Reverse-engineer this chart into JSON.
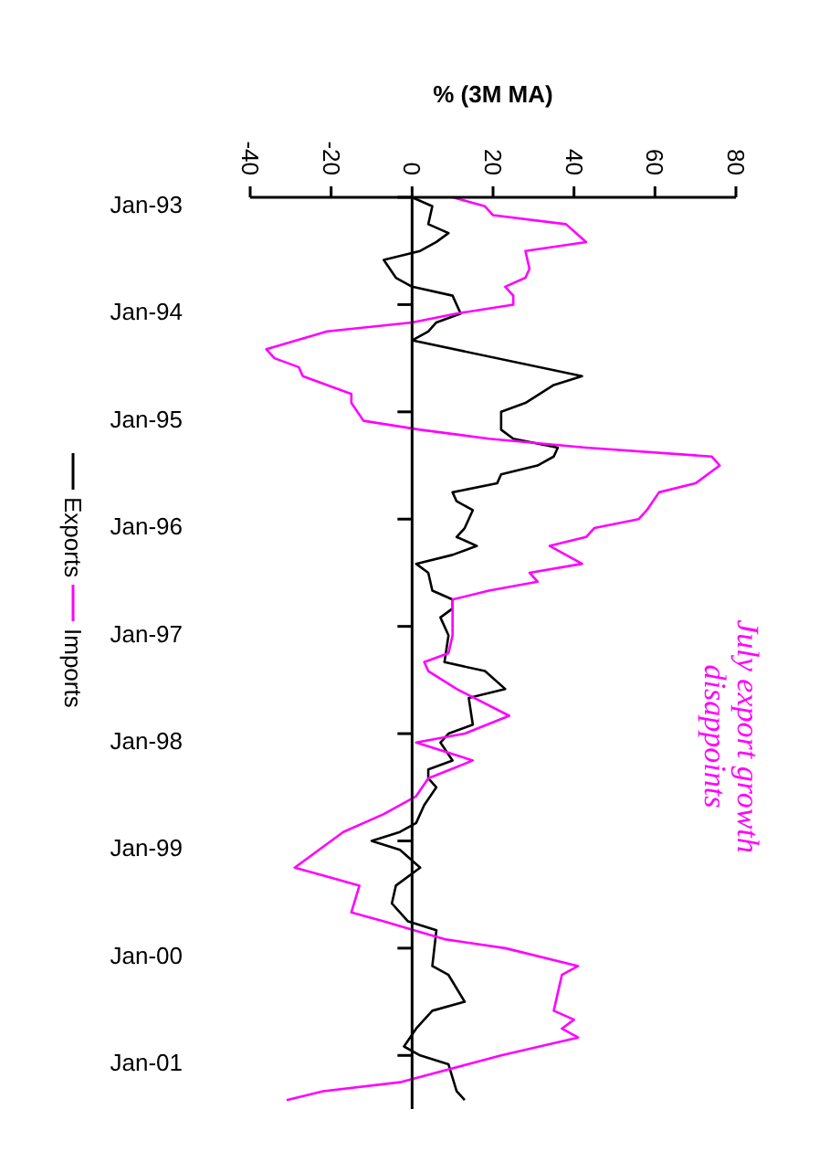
{
  "chart_data": {
    "type": "line",
    "xlabel": "% (3M MA)",
    "orientation": "horizontal",
    "ylim": [
      "2001-07",
      "1993-01"
    ],
    "yticks": [
      {
        "value": "1993-01",
        "label": "Jan-93"
      },
      {
        "value": "1994-01",
        "label": "Jan-94"
      },
      {
        "value": "1995-01",
        "label": "Jan-95"
      },
      {
        "value": "1996-01",
        "label": "Jan-96"
      },
      {
        "value": "1997-01",
        "label": "Jan-97"
      },
      {
        "value": "1998-01",
        "label": "Jan-98"
      },
      {
        "value": "1999-01",
        "label": "Jan-99"
      },
      {
        "value": "2000-01",
        "label": "Jan-00"
      },
      {
        "value": "2001-01",
        "label": "Jan-01"
      }
    ],
    "xlim": [
      -40,
      80
    ],
    "xticks": [
      -40,
      -20,
      0,
      20,
      40,
      60,
      80
    ],
    "legend": "left",
    "marker": "none",
    "line_style": "solid",
    "annotations": [
      "July export growth disappoints"
    ],
    "series": [
      {
        "name": "Exports",
        "color": "#000000",
        "x": [
          "1993-01",
          "1993-02",
          "1993-04",
          "1993-05",
          "1993-06",
          "1993-07",
          "1993-08",
          "1993-10",
          "1993-11",
          "1993-12",
          "1994-02",
          "1994-03",
          "1994-04",
          "1994-05",
          "1994-09",
          "1994-10",
          "1994-12",
          "1995-01",
          "1995-03",
          "1995-04",
          "1995-05",
          "1995-06",
          "1995-07",
          "1995-08",
          "1995-09",
          "1995-10",
          "1995-11",
          "1995-12",
          "1996-02",
          "1996-03",
          "1996-04",
          "1996-05",
          "1996-06",
          "1996-07",
          "1996-09",
          "1996-10",
          "1996-11",
          "1996-12",
          "1997-02",
          "1997-05",
          "1997-06",
          "1997-08",
          "1997-09",
          "1997-12",
          "1998-01",
          "1998-02",
          "1998-04",
          "1998-05",
          "1998-06",
          "1998-07",
          "1998-09",
          "1998-11",
          "1998-12",
          "1999-01",
          "1999-02",
          "1999-04",
          "1999-06",
          "1999-08",
          "1999-10",
          "1999-11",
          "2000-03",
          "2000-04",
          "2000-07",
          "2000-08",
          "2000-10",
          "2000-12",
          "2001-01",
          "2001-02",
          "2001-05",
          "2001-06"
        ],
        "values": [
          0,
          5,
          4,
          9,
          6,
          2,
          -7,
          -4,
          0,
          10,
          12,
          6,
          4,
          0,
          42,
          35,
          28,
          22,
          22,
          25,
          36,
          35,
          31,
          22,
          21,
          10,
          11,
          15,
          13,
          11,
          16,
          10,
          1,
          4,
          5,
          10,
          10,
          7,
          9,
          8,
          18,
          23,
          14,
          15,
          9,
          7,
          10,
          4,
          4,
          6,
          3,
          1,
          -3,
          -10,
          -3,
          2,
          -4,
          -5,
          -1,
          6,
          5,
          9,
          13,
          5,
          1,
          -2,
          2,
          9,
          11,
          13
        ]
      },
      {
        "name": "Imports",
        "color": "#ff00ff",
        "x": [
          "1993-01",
          "1993-02",
          "1993-03",
          "1993-04",
          "1993-06",
          "1993-07",
          "1993-09",
          "1993-10",
          "1993-11",
          "1993-12",
          "1994-01",
          "1994-02",
          "1994-03",
          "1994-04",
          "1994-06",
          "1994-07",
          "1994-08",
          "1994-09",
          "1994-11",
          "1994-12",
          "1995-02",
          "1995-03",
          "1995-04",
          "1995-05",
          "1995-06",
          "1995-07",
          "1995-09",
          "1995-10",
          "1995-12",
          "1996-01",
          "1996-02",
          "1996-03",
          "1996-04",
          "1996-06",
          "1996-07",
          "1996-08",
          "1996-09",
          "1996-10",
          "1997-02",
          "1997-04",
          "1997-05",
          "1997-06",
          "1997-08",
          "1997-11",
          "1998-01",
          "1998-02",
          "1998-04",
          "1998-06",
          "1998-08",
          "1998-10",
          "1998-12",
          "1999-04",
          "1999-05",
          "1999-06",
          "1999-09",
          "1999-10",
          "1999-12",
          "2000-01",
          "2000-03",
          "2000-04",
          "2000-08",
          "2000-09",
          "2000-10",
          "2000-11",
          "2001-01",
          "2001-04",
          "2001-05",
          "2001-06"
        ],
        "values": [
          10,
          18,
          20,
          38,
          43,
          28,
          29,
          28,
          23,
          25,
          25,
          11,
          0,
          -21,
          -36,
          -34,
          -28,
          -27,
          -15,
          -15,
          -12,
          2,
          19,
          43,
          74,
          76,
          70,
          61,
          58,
          56,
          45,
          43,
          34,
          42,
          29,
          31,
          19,
          10,
          10,
          9,
          3,
          4,
          11,
          24,
          13,
          1,
          15,
          4,
          1,
          -7,
          -17,
          -29,
          -21,
          -13,
          -15,
          -7,
          8,
          23,
          41,
          37,
          35,
          40,
          37,
          41,
          22,
          -3,
          -22,
          -31
        ]
      }
    ]
  }
}
